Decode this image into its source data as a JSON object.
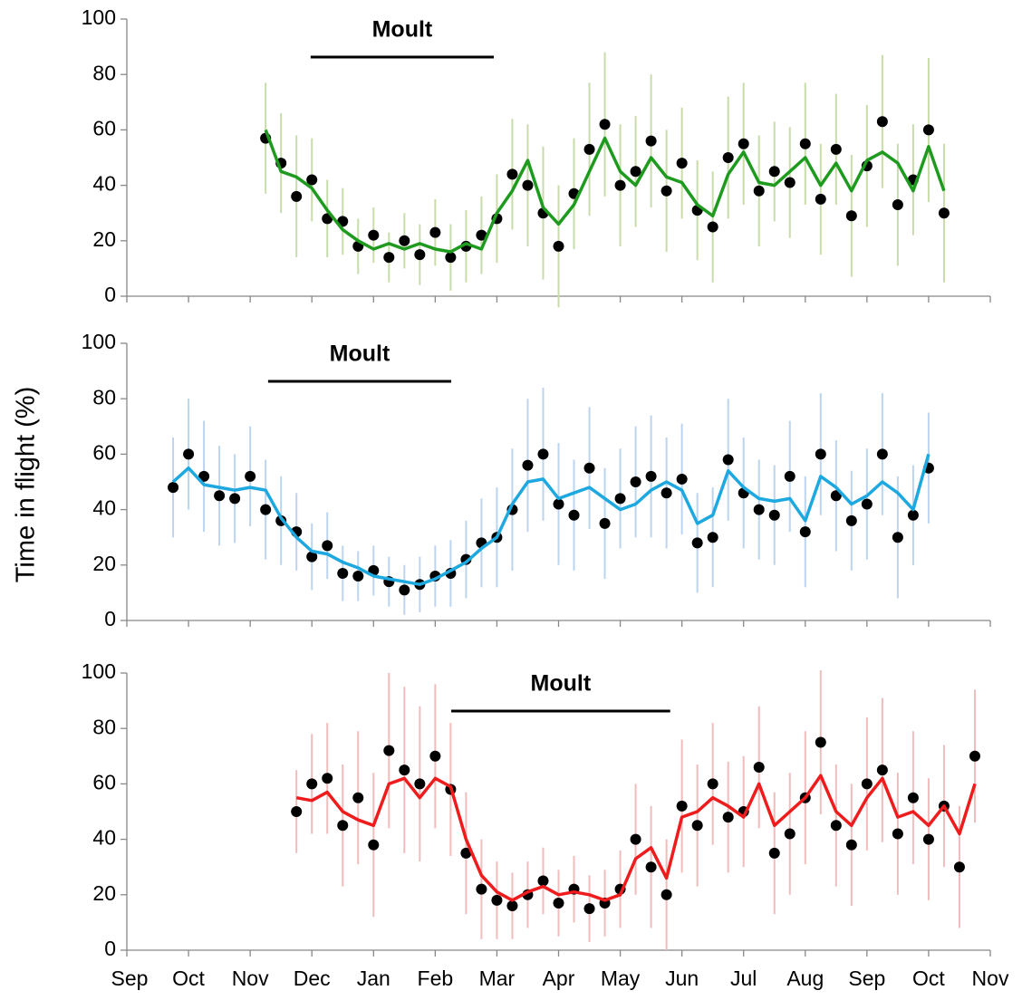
{
  "chart_data": [
    {
      "type": "scatter",
      "moult": {
        "label": "Moult",
        "start": 2.98,
        "end": 5.95
      },
      "x": [
        2.25,
        2.5,
        2.75,
        3.0,
        3.25,
        3.5,
        3.75,
        4.0,
        4.25,
        4.5,
        4.75,
        5.0,
        5.25,
        5.5,
        5.75,
        6.0,
        6.25,
        6.5,
        6.75,
        7.0,
        7.25,
        7.5,
        7.75,
        8.0,
        8.25,
        8.5,
        8.75,
        9.0,
        9.25,
        9.5,
        9.75,
        10.0,
        10.25,
        10.5,
        10.75,
        11.0,
        11.25,
        11.5,
        11.75,
        12.0,
        12.25,
        12.5,
        12.75,
        13.0,
        13.25
      ],
      "series": [
        {
          "mode": "markers",
          "color": "#000000",
          "error_color": "#c8dcaa",
          "values": [
            57,
            48,
            36,
            42,
            28,
            27,
            18,
            22,
            14,
            20,
            15,
            23,
            14,
            18,
            22,
            28,
            44,
            40,
            30,
            18,
            37,
            53,
            62,
            40,
            45,
            56,
            38,
            48,
            31,
            25,
            50,
            55,
            38,
            45,
            41,
            55,
            35,
            53,
            29,
            47,
            63,
            33,
            42,
            60,
            30
          ],
          "errors": [
            20,
            18,
            22,
            15,
            14,
            12,
            10,
            10,
            9,
            10,
            11,
            12,
            12,
            13,
            14,
            16,
            20,
            22,
            24,
            22,
            20,
            24,
            26,
            22,
            20,
            24,
            22,
            20,
            18,
            20,
            22,
            22,
            20,
            18,
            20,
            22,
            20,
            20,
            22,
            22,
            24,
            22,
            20,
            26,
            25
          ]
        },
        {
          "mode": "line",
          "color": "#1e9b1e",
          "values": [
            60,
            45,
            43,
            39,
            31,
            24,
            20,
            17,
            19,
            17,
            19,
            17,
            16,
            19,
            17,
            30,
            38,
            49,
            32,
            26,
            33,
            45,
            57,
            45,
            40,
            50,
            43,
            41,
            33,
            29,
            44,
            52,
            41,
            40,
            45,
            50,
            40,
            48,
            38,
            49,
            52,
            48,
            38,
            54,
            38
          ]
        }
      ],
      "xlim": [
        0,
        14
      ],
      "xticks": [
        0,
        1,
        2,
        3,
        4,
        5,
        6,
        7,
        8,
        9,
        10,
        11,
        12,
        13,
        14
      ],
      "ylim": [
        0,
        100
      ],
      "yticks": [
        0,
        20,
        40,
        60,
        80,
        100
      ]
    },
    {
      "type": "scatter",
      "ylabel": "Time in flight (%)",
      "moult": {
        "label": "Moult",
        "start": 2.29,
        "end": 5.26
      },
      "x": [
        0.75,
        1.0,
        1.25,
        1.5,
        1.75,
        2.0,
        2.25,
        2.5,
        2.75,
        3.0,
        3.25,
        3.5,
        3.75,
        4.0,
        4.25,
        4.5,
        4.75,
        5.0,
        5.25,
        5.5,
        5.75,
        6.0,
        6.25,
        6.5,
        6.75,
        7.0,
        7.25,
        7.5,
        7.75,
        8.0,
        8.25,
        8.5,
        8.75,
        9.0,
        9.25,
        9.5,
        9.75,
        10.0,
        10.25,
        10.5,
        10.75,
        11.0,
        11.25,
        11.5,
        11.75,
        12.0,
        12.25,
        12.5,
        12.75,
        13.0
      ],
      "series": [
        {
          "mode": "markers",
          "color": "#000000",
          "error_color": "#bcd4ee",
          "values": [
            48,
            60,
            52,
            45,
            44,
            52,
            40,
            36,
            32,
            23,
            27,
            17,
            16,
            18,
            14,
            11,
            13,
            16,
            17,
            22,
            28,
            30,
            40,
            56,
            60,
            42,
            38,
            55,
            35,
            44,
            50,
            52,
            46,
            51,
            28,
            30,
            58,
            46,
            40,
            38,
            52,
            32,
            60,
            45,
            36,
            42,
            60,
            30,
            38,
            55
          ],
          "errors": [
            18,
            20,
            20,
            18,
            16,
            18,
            18,
            16,
            14,
            12,
            12,
            10,
            9,
            9,
            9,
            9,
            10,
            11,
            12,
            14,
            16,
            18,
            22,
            24,
            24,
            22,
            20,
            22,
            20,
            18,
            20,
            22,
            20,
            20,
            18,
            18,
            22,
            20,
            18,
            18,
            20,
            20,
            22,
            20,
            18,
            20,
            22,
            22,
            18,
            20
          ]
        },
        {
          "mode": "line",
          "color": "#1ea8e0",
          "values": [
            50,
            55,
            49,
            48,
            47,
            48,
            47,
            37,
            30,
            25,
            24,
            21,
            19,
            16,
            15,
            14,
            13,
            15,
            18,
            21,
            26,
            30,
            42,
            50,
            51,
            44,
            46,
            48,
            44,
            40,
            42,
            47,
            50,
            47,
            35,
            38,
            54,
            48,
            44,
            43,
            44,
            36,
            52,
            48,
            42,
            45,
            50,
            46,
            40,
            60
          ]
        }
      ],
      "xlim": [
        0,
        14
      ],
      "xticks": [
        0,
        1,
        2,
        3,
        4,
        5,
        6,
        7,
        8,
        9,
        10,
        11,
        12,
        13,
        14
      ],
      "ylim": [
        0,
        100
      ],
      "yticks": [
        0,
        20,
        40,
        60,
        80,
        100
      ]
    },
    {
      "type": "scatter",
      "moult": {
        "label": "Moult",
        "start": 5.26,
        "end": 8.81
      },
      "x": [
        2.75,
        3.0,
        3.25,
        3.5,
        3.75,
        4.0,
        4.25,
        4.5,
        4.75,
        5.0,
        5.25,
        5.5,
        5.75,
        6.0,
        6.25,
        6.5,
        6.75,
        7.0,
        7.25,
        7.5,
        7.75,
        8.0,
        8.25,
        8.5,
        8.75,
        9.0,
        9.25,
        9.5,
        9.75,
        10.0,
        10.25,
        10.5,
        10.75,
        11.0,
        11.25,
        11.5,
        11.75,
        12.0,
        12.25,
        12.5,
        12.75,
        13.0,
        13.25,
        13.5,
        13.75
      ],
      "series": [
        {
          "mode": "markers",
          "color": "#000000",
          "error_color": "#f0bcbc",
          "values": [
            50,
            60,
            62,
            45,
            55,
            38,
            72,
            65,
            60,
            70,
            58,
            35,
            22,
            18,
            16,
            20,
            25,
            17,
            22,
            15,
            17,
            22,
            40,
            30,
            20,
            52,
            45,
            60,
            48,
            50,
            66,
            35,
            42,
            55,
            75,
            45,
            38,
            60,
            65,
            42,
            55,
            40,
            52,
            30,
            70
          ],
          "errors": [
            15,
            18,
            20,
            22,
            24,
            26,
            28,
            30,
            28,
            26,
            24,
            22,
            18,
            14,
            12,
            12,
            12,
            12,
            12,
            12,
            12,
            14,
            20,
            22,
            20,
            24,
            22,
            22,
            20,
            20,
            22,
            22,
            22,
            24,
            26,
            22,
            22,
            24,
            26,
            22,
            24,
            22,
            22,
            22,
            24
          ]
        },
        {
          "mode": "line",
          "color": "#ee1c1c",
          "values": [
            55,
            54,
            57,
            50,
            47,
            45,
            60,
            62,
            55,
            62,
            59,
            40,
            27,
            21,
            18,
            21,
            23,
            20,
            21,
            20,
            18,
            20,
            33,
            37,
            26,
            48,
            50,
            55,
            52,
            48,
            60,
            45,
            50,
            55,
            63,
            50,
            45,
            55,
            62,
            48,
            50,
            45,
            52,
            42,
            60
          ]
        }
      ],
      "xlim": [
        0,
        14
      ],
      "xticks": [
        {
          "value": 0,
          "label": "Sep"
        },
        {
          "value": 1,
          "label": "Oct"
        },
        {
          "value": 2,
          "label": "Nov"
        },
        {
          "value": 3,
          "label": "Dec"
        },
        {
          "value": 4,
          "label": "Jan"
        },
        {
          "value": 5,
          "label": "Feb"
        },
        {
          "value": 6,
          "label": "Mar"
        },
        {
          "value": 7,
          "label": "Apr"
        },
        {
          "value": 8,
          "label": "May"
        },
        {
          "value": 9,
          "label": "Jun"
        },
        {
          "value": 10,
          "label": "Jul"
        },
        {
          "value": 11,
          "label": "Aug"
        },
        {
          "value": 12,
          "label": "Sep"
        },
        {
          "value": 13,
          "label": "Oct"
        },
        {
          "value": 14,
          "label": "Nov"
        }
      ],
      "ylim": [
        0,
        100
      ],
      "yticks": [
        0,
        20,
        40,
        60,
        80,
        100
      ]
    }
  ]
}
